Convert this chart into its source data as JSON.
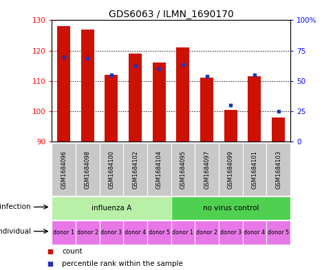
{
  "title": "GDS6063 / ILMN_1690170",
  "samples": [
    "GSM1684096",
    "GSM1684098",
    "GSM1684100",
    "GSM1684102",
    "GSM1684104",
    "GSM1684095",
    "GSM1684097",
    "GSM1684099",
    "GSM1684101",
    "GSM1684103"
  ],
  "red_values": [
    128.0,
    127.0,
    112.0,
    119.0,
    116.0,
    121.0,
    111.0,
    100.5,
    111.5,
    98.0
  ],
  "blue_values": [
    118.0,
    117.5,
    112.0,
    115.0,
    114.0,
    115.5,
    111.5,
    102.0,
    112.0,
    100.0
  ],
  "ymin": 90,
  "ymax": 130,
  "yticks_left": [
    90,
    100,
    110,
    120,
    130
  ],
  "right_yticks_pct": [
    0,
    25,
    50,
    75,
    100
  ],
  "infection_groups": [
    {
      "label": "influenza A",
      "start": 0,
      "end": 5,
      "color": "#b8f0a8"
    },
    {
      "label": "no virus control",
      "start": 5,
      "end": 10,
      "color": "#50d050"
    }
  ],
  "individual_labels": [
    "donor 1",
    "donor 2",
    "donor 3",
    "donor 4",
    "donor 5",
    "donor 1",
    "donor 2",
    "donor 3",
    "donor 4",
    "donor 5"
  ],
  "individual_color": "#e878e8",
  "gsm_bg_color": "#c8c8c8",
  "bar_color": "#cc1100",
  "blue_color": "#2233bb",
  "bar_width": 0.55,
  "title_fontsize": 10,
  "tick_fontsize": 7.5,
  "label_fontsize": 7.5,
  "legend_fontsize": 7.5,
  "sample_fontsize": 6.0
}
